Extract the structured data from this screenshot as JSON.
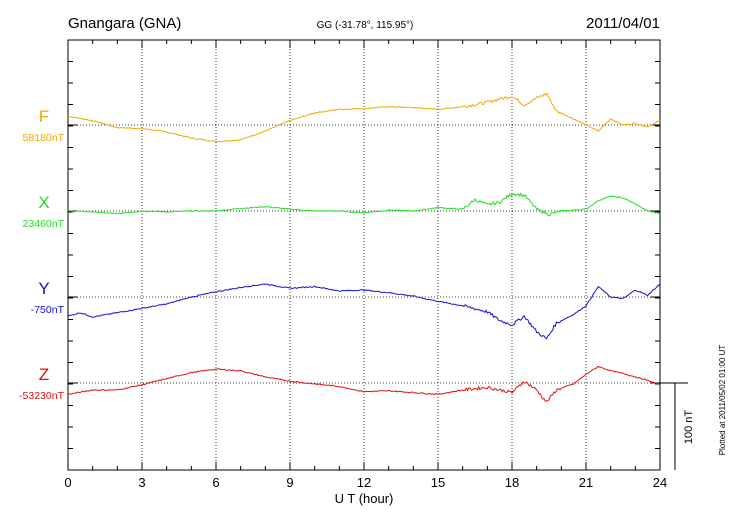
{
  "header": {
    "station": "Gnangara (GNA)",
    "coords": "GG (-31.78°, 115.95°)",
    "date": "2011/04/01"
  },
  "side_note": "Plotted at 2011/05/02 01:00 UT",
  "scale_label": "100 nT",
  "colors": {
    "F": "#f2a800",
    "X": "#22dd22",
    "Y": "#1111cc",
    "Z": "#e01010",
    "axis": "#000000"
  },
  "chart_data": {
    "type": "line",
    "xlabel": "U T (hour)",
    "xlim": [
      0,
      24
    ],
    "xticks": [
      "0",
      "3",
      "6",
      "9",
      "12",
      "15",
      "18",
      "21",
      "24"
    ],
    "grid": "dotted",
    "scale_bar_nT": 100,
    "series": [
      {
        "name": "F",
        "baseline_label": "58180nT",
        "baseline_nT": 58180,
        "x": [
          0,
          1,
          2,
          3,
          4,
          5,
          6,
          7,
          8,
          9,
          10,
          11,
          12,
          13,
          14,
          15,
          16,
          17,
          17.5,
          18,
          18.5,
          19,
          19.4,
          19.8,
          20.5,
          21,
          21.5,
          22,
          22.5,
          23,
          23.5,
          24
        ],
        "y": [
          58190,
          58185,
          58177,
          58176,
          58172,
          58165,
          58161,
          58163,
          58173,
          58185,
          58194,
          58198,
          58199,
          58201,
          58200,
          58198,
          58201,
          58206,
          58210,
          58213,
          58203,
          58211,
          58216,
          58196,
          58187,
          58180,
          58173,
          58187,
          58180,
          58182,
          58178,
          58185
        ]
      },
      {
        "name": "X",
        "baseline_label": "23460nT",
        "baseline_nT": 23460,
        "x": [
          0,
          1,
          2,
          3,
          4,
          5,
          6,
          7,
          8,
          9,
          10,
          11,
          12,
          13,
          14,
          15,
          16,
          16.5,
          17,
          17.5,
          18,
          18.5,
          19,
          19.5,
          20,
          21,
          21.5,
          22,
          22.5,
          23,
          23.5,
          24
        ],
        "y": [
          23460,
          23459,
          23457,
          23460,
          23459,
          23460,
          23460,
          23463,
          23465,
          23462,
          23460,
          23460,
          23458,
          23461,
          23460,
          23464,
          23462,
          23473,
          23467,
          23470,
          23480,
          23478,
          23462,
          23456,
          23460,
          23462,
          23472,
          23477,
          23475,
          23468,
          23460,
          23457
        ]
      },
      {
        "name": "Y",
        "baseline_label": "-750nT",
        "baseline_nT": -750,
        "x": [
          0,
          0.5,
          1,
          2,
          3,
          4,
          5,
          6,
          7,
          8,
          9,
          10,
          11,
          12,
          13,
          14,
          15,
          16,
          17,
          17.5,
          18,
          18.5,
          19,
          19.4,
          19.8,
          20.5,
          21,
          21.5,
          22,
          22.5,
          23,
          23.5,
          24
        ],
        "y": [
          -772,
          -768,
          -773,
          -768,
          -763,
          -758,
          -750,
          -744,
          -739,
          -735,
          -740,
          -738,
          -743,
          -742,
          -745,
          -749,
          -755,
          -760,
          -767,
          -777,
          -782,
          -772,
          -790,
          -798,
          -780,
          -770,
          -760,
          -738,
          -750,
          -752,
          -742,
          -748,
          -735
        ]
      },
      {
        "name": "Z",
        "baseline_label": "-53230nT",
        "baseline_nT": -53230,
        "x": [
          0,
          1,
          2,
          3,
          4,
          5,
          6,
          7,
          8,
          9,
          10,
          11,
          12,
          13,
          14,
          15,
          16,
          17,
          18,
          18.5,
          19,
          19.4,
          19.8,
          20.5,
          21,
          21.5,
          22,
          22.5,
          23,
          23.5,
          24
        ],
        "y": [
          -53243,
          -53238,
          -53238,
          -53232,
          -53225,
          -53218,
          -53214,
          -53216,
          -53223,
          -53228,
          -53231,
          -53234,
          -53240,
          -53239,
          -53241,
          -53243,
          -53238,
          -53235,
          -53241,
          -53228,
          -53238,
          -53252,
          -53238,
          -53231,
          -53220,
          -53211,
          -53216,
          -53219,
          -53223,
          -53227,
          -53232
        ]
      }
    ]
  }
}
